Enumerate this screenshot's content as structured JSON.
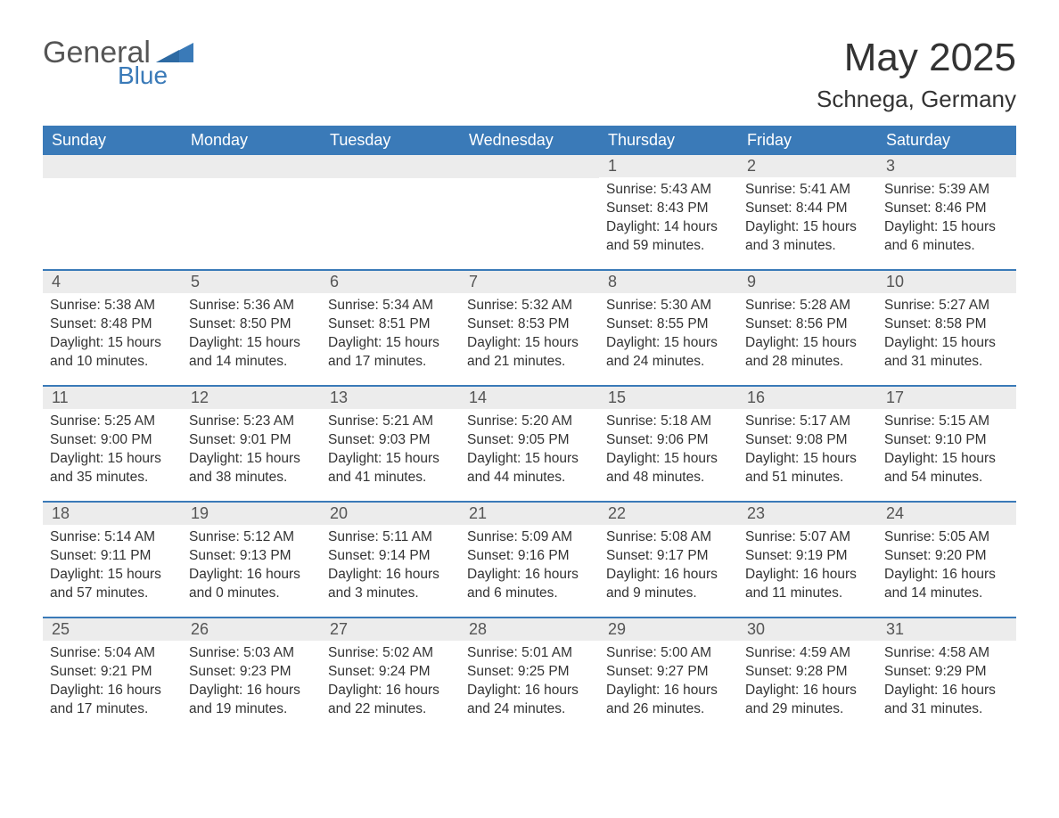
{
  "logo": {
    "text1": "General",
    "text2": "Blue",
    "shape_color": "#3a7ab8"
  },
  "title": "May 2025",
  "location": "Schnega, Germany",
  "colors": {
    "header_bg": "#3a7ab8",
    "header_text": "#ffffff",
    "daynum_bg": "#ececec",
    "week_border": "#3a7ab8",
    "body_text": "#333333",
    "logo_gray": "#555555"
  },
  "day_headers": [
    "Sunday",
    "Monday",
    "Tuesday",
    "Wednesday",
    "Thursday",
    "Friday",
    "Saturday"
  ],
  "weeks": [
    [
      {
        "empty": true
      },
      {
        "empty": true
      },
      {
        "empty": true
      },
      {
        "empty": true
      },
      {
        "num": "1",
        "sunrise": "Sunrise: 5:43 AM",
        "sunset": "Sunset: 8:43 PM",
        "daylight": "Daylight: 14 hours and 59 minutes."
      },
      {
        "num": "2",
        "sunrise": "Sunrise: 5:41 AM",
        "sunset": "Sunset: 8:44 PM",
        "daylight": "Daylight: 15 hours and 3 minutes."
      },
      {
        "num": "3",
        "sunrise": "Sunrise: 5:39 AM",
        "sunset": "Sunset: 8:46 PM",
        "daylight": "Daylight: 15 hours and 6 minutes."
      }
    ],
    [
      {
        "num": "4",
        "sunrise": "Sunrise: 5:38 AM",
        "sunset": "Sunset: 8:48 PM",
        "daylight": "Daylight: 15 hours and 10 minutes."
      },
      {
        "num": "5",
        "sunrise": "Sunrise: 5:36 AM",
        "sunset": "Sunset: 8:50 PM",
        "daylight": "Daylight: 15 hours and 14 minutes."
      },
      {
        "num": "6",
        "sunrise": "Sunrise: 5:34 AM",
        "sunset": "Sunset: 8:51 PM",
        "daylight": "Daylight: 15 hours and 17 minutes."
      },
      {
        "num": "7",
        "sunrise": "Sunrise: 5:32 AM",
        "sunset": "Sunset: 8:53 PM",
        "daylight": "Daylight: 15 hours and 21 minutes."
      },
      {
        "num": "8",
        "sunrise": "Sunrise: 5:30 AM",
        "sunset": "Sunset: 8:55 PM",
        "daylight": "Daylight: 15 hours and 24 minutes."
      },
      {
        "num": "9",
        "sunrise": "Sunrise: 5:28 AM",
        "sunset": "Sunset: 8:56 PM",
        "daylight": "Daylight: 15 hours and 28 minutes."
      },
      {
        "num": "10",
        "sunrise": "Sunrise: 5:27 AM",
        "sunset": "Sunset: 8:58 PM",
        "daylight": "Daylight: 15 hours and 31 minutes."
      }
    ],
    [
      {
        "num": "11",
        "sunrise": "Sunrise: 5:25 AM",
        "sunset": "Sunset: 9:00 PM",
        "daylight": "Daylight: 15 hours and 35 minutes."
      },
      {
        "num": "12",
        "sunrise": "Sunrise: 5:23 AM",
        "sunset": "Sunset: 9:01 PM",
        "daylight": "Daylight: 15 hours and 38 minutes."
      },
      {
        "num": "13",
        "sunrise": "Sunrise: 5:21 AM",
        "sunset": "Sunset: 9:03 PM",
        "daylight": "Daylight: 15 hours and 41 minutes."
      },
      {
        "num": "14",
        "sunrise": "Sunrise: 5:20 AM",
        "sunset": "Sunset: 9:05 PM",
        "daylight": "Daylight: 15 hours and 44 minutes."
      },
      {
        "num": "15",
        "sunrise": "Sunrise: 5:18 AM",
        "sunset": "Sunset: 9:06 PM",
        "daylight": "Daylight: 15 hours and 48 minutes."
      },
      {
        "num": "16",
        "sunrise": "Sunrise: 5:17 AM",
        "sunset": "Sunset: 9:08 PM",
        "daylight": "Daylight: 15 hours and 51 minutes."
      },
      {
        "num": "17",
        "sunrise": "Sunrise: 5:15 AM",
        "sunset": "Sunset: 9:10 PM",
        "daylight": "Daylight: 15 hours and 54 minutes."
      }
    ],
    [
      {
        "num": "18",
        "sunrise": "Sunrise: 5:14 AM",
        "sunset": "Sunset: 9:11 PM",
        "daylight": "Daylight: 15 hours and 57 minutes."
      },
      {
        "num": "19",
        "sunrise": "Sunrise: 5:12 AM",
        "sunset": "Sunset: 9:13 PM",
        "daylight": "Daylight: 16 hours and 0 minutes."
      },
      {
        "num": "20",
        "sunrise": "Sunrise: 5:11 AM",
        "sunset": "Sunset: 9:14 PM",
        "daylight": "Daylight: 16 hours and 3 minutes."
      },
      {
        "num": "21",
        "sunrise": "Sunrise: 5:09 AM",
        "sunset": "Sunset: 9:16 PM",
        "daylight": "Daylight: 16 hours and 6 minutes."
      },
      {
        "num": "22",
        "sunrise": "Sunrise: 5:08 AM",
        "sunset": "Sunset: 9:17 PM",
        "daylight": "Daylight: 16 hours and 9 minutes."
      },
      {
        "num": "23",
        "sunrise": "Sunrise: 5:07 AM",
        "sunset": "Sunset: 9:19 PM",
        "daylight": "Daylight: 16 hours and 11 minutes."
      },
      {
        "num": "24",
        "sunrise": "Sunrise: 5:05 AM",
        "sunset": "Sunset: 9:20 PM",
        "daylight": "Daylight: 16 hours and 14 minutes."
      }
    ],
    [
      {
        "num": "25",
        "sunrise": "Sunrise: 5:04 AM",
        "sunset": "Sunset: 9:21 PM",
        "daylight": "Daylight: 16 hours and 17 minutes."
      },
      {
        "num": "26",
        "sunrise": "Sunrise: 5:03 AM",
        "sunset": "Sunset: 9:23 PM",
        "daylight": "Daylight: 16 hours and 19 minutes."
      },
      {
        "num": "27",
        "sunrise": "Sunrise: 5:02 AM",
        "sunset": "Sunset: 9:24 PM",
        "daylight": "Daylight: 16 hours and 22 minutes."
      },
      {
        "num": "28",
        "sunrise": "Sunrise: 5:01 AM",
        "sunset": "Sunset: 9:25 PM",
        "daylight": "Daylight: 16 hours and 24 minutes."
      },
      {
        "num": "29",
        "sunrise": "Sunrise: 5:00 AM",
        "sunset": "Sunset: 9:27 PM",
        "daylight": "Daylight: 16 hours and 26 minutes."
      },
      {
        "num": "30",
        "sunrise": "Sunrise: 4:59 AM",
        "sunset": "Sunset: 9:28 PM",
        "daylight": "Daylight: 16 hours and 29 minutes."
      },
      {
        "num": "31",
        "sunrise": "Sunrise: 4:58 AM",
        "sunset": "Sunset: 9:29 PM",
        "daylight": "Daylight: 16 hours and 31 minutes."
      }
    ]
  ]
}
